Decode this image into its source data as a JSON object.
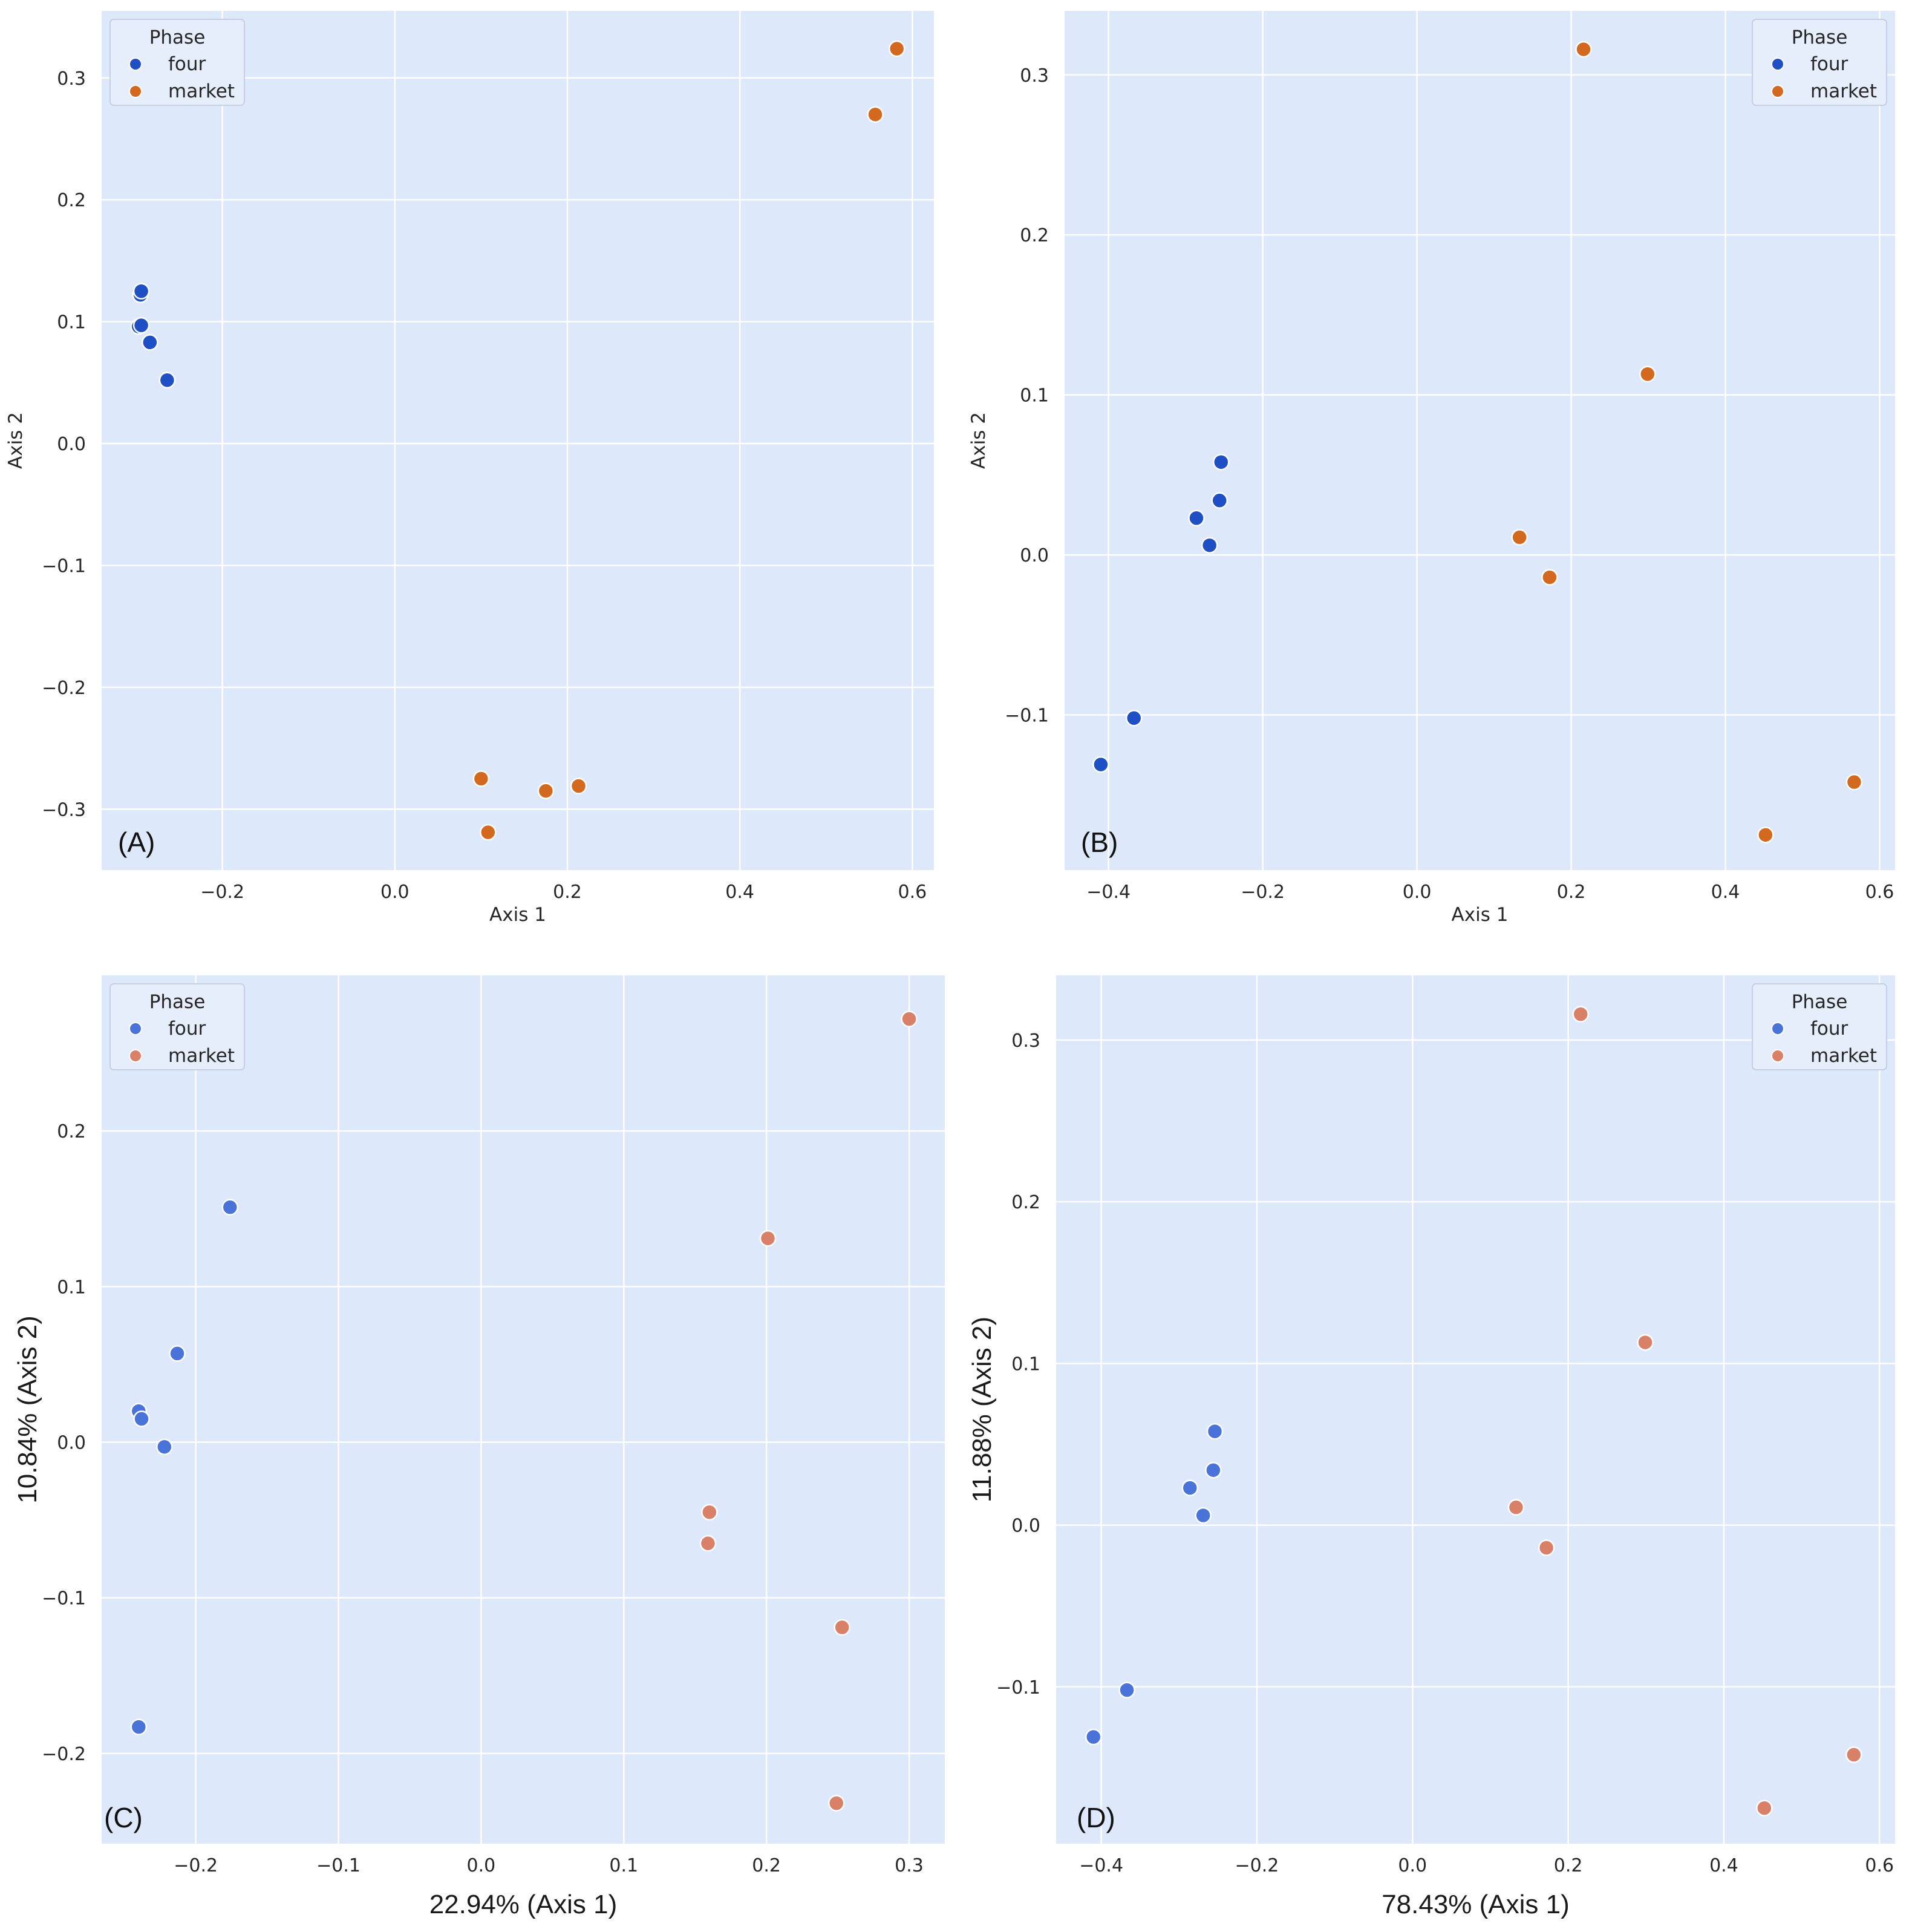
{
  "chart_data": [
    {
      "id": "A",
      "type": "scatter",
      "panel_label": "(A)",
      "xlabel": "Axis 1",
      "ylabel": "Axis 2",
      "xlim": [
        -0.34,
        0.625
      ],
      "ylim": [
        -0.35,
        0.355
      ],
      "xticks": [
        -0.2,
        0.0,
        0.2,
        0.4,
        0.6
      ],
      "xtick_labels": [
        "−0.2",
        "0.0",
        "0.2",
        "0.4",
        "0.6"
      ],
      "yticks": [
        -0.3,
        -0.2,
        -0.1,
        0.0,
        0.1,
        0.2,
        0.3
      ],
      "ytick_labels": [
        "−0.3",
        "−0.2",
        "−0.1",
        "0.0",
        "0.1",
        "0.2",
        "0.3"
      ],
      "legend": {
        "title": "Phase",
        "placement": "top-left"
      },
      "series": [
        {
          "name": "four",
          "color": "#1e4fc4",
          "x": [
            -0.295,
            -0.294,
            -0.297,
            -0.294,
            -0.284,
            -0.264
          ],
          "y": [
            0.122,
            0.125,
            0.096,
            0.097,
            0.083,
            0.052
          ]
        },
        {
          "name": "market",
          "color": "#d2691e",
          "x": [
            0.582,
            0.557,
            0.1,
            0.108,
            0.175,
            0.213
          ],
          "y": [
            0.324,
            0.27,
            -0.275,
            -0.319,
            -0.285,
            -0.281
          ]
        }
      ]
    },
    {
      "id": "B",
      "type": "scatter",
      "panel_label": "(B)",
      "xlabel": "Axis 1",
      "ylabel": "Axis 2",
      "xlim": [
        -0.457,
        0.62
      ],
      "ylim": [
        -0.197,
        0.34
      ],
      "xticks": [
        -0.4,
        -0.2,
        0.0,
        0.2,
        0.4,
        0.6
      ],
      "xtick_labels": [
        "−0.4",
        "−0.2",
        "0.0",
        "0.2",
        "0.4",
        "0.6"
      ],
      "yticks": [
        -0.1,
        0.0,
        0.1,
        0.2,
        0.3
      ],
      "ytick_labels": [
        "−0.1",
        "0.0",
        "0.1",
        "0.2",
        "0.3"
      ],
      "legend": {
        "title": "Phase",
        "placement": "top-right"
      },
      "series": [
        {
          "name": "four",
          "color": "#1e4fc4",
          "x": [
            -0.254,
            -0.256,
            -0.286,
            -0.269,
            -0.367,
            -0.41
          ],
          "y": [
            0.058,
            0.034,
            0.023,
            0.006,
            -0.102,
            -0.131
          ]
        },
        {
          "name": "market",
          "color": "#d2691e",
          "x": [
            0.216,
            0.299,
            0.133,
            0.172,
            0.567,
            0.452
          ],
          "y": [
            0.316,
            0.113,
            0.011,
            -0.014,
            -0.142,
            -0.175
          ]
        }
      ]
    },
    {
      "id": "C",
      "type": "scatter",
      "panel_label": "(C)",
      "xlabel": "22.94% (Axis 1)",
      "ylabel": "10.84% (Axis 2)",
      "xlim": [
        -0.266,
        0.325
      ],
      "ylim": [
        -0.258,
        0.3
      ],
      "xticks": [
        -0.2,
        -0.1,
        0.0,
        0.1,
        0.2,
        0.3
      ],
      "xtick_labels": [
        "−0.2",
        "−0.1",
        "0.0",
        "0.1",
        "0.2",
        "0.3"
      ],
      "yticks": [
        -0.2,
        -0.1,
        0.0,
        0.1,
        0.2
      ],
      "ytick_labels": [
        "−0.2",
        "−0.1",
        "0.0",
        "0.1",
        "0.2"
      ],
      "legend": {
        "title": "Phase",
        "placement": "top-left"
      },
      "series": [
        {
          "name": "four",
          "color": "#4a73d9",
          "x": [
            -0.176,
            -0.213,
            -0.24,
            -0.238,
            -0.222,
            -0.24
          ],
          "y": [
            0.151,
            0.057,
            0.02,
            0.015,
            -0.003,
            -0.183
          ]
        },
        {
          "name": "market",
          "color": "#d98068",
          "x": [
            0.3,
            0.201,
            0.16,
            0.159,
            0.253,
            0.249
          ],
          "y": [
            0.272,
            0.131,
            -0.045,
            -0.065,
            -0.119,
            -0.232
          ]
        }
      ]
    },
    {
      "id": "D",
      "type": "scatter",
      "panel_label": "(D)",
      "xlabel": "78.43% (Axis 1)",
      "ylabel": "11.88% (Axis 2)",
      "xlim": [
        -0.458,
        0.62
      ],
      "ylim": [
        -0.197,
        0.34
      ],
      "xticks": [
        -0.4,
        -0.2,
        0.0,
        0.2,
        0.4,
        0.6
      ],
      "xtick_labels": [
        "−0.4",
        "−0.2",
        "0.0",
        "0.2",
        "0.4",
        "0.6"
      ],
      "yticks": [
        -0.1,
        0.0,
        0.1,
        0.2,
        0.3
      ],
      "ytick_labels": [
        "−0.1",
        "0.0",
        "0.1",
        "0.2",
        "0.3"
      ],
      "legend": {
        "title": "Phase",
        "placement": "top-right"
      },
      "series": [
        {
          "name": "four",
          "color": "#4a73d9",
          "x": [
            -0.254,
            -0.256,
            -0.286,
            -0.269,
            -0.367,
            -0.41
          ],
          "y": [
            0.058,
            0.034,
            0.023,
            0.006,
            -0.102,
            -0.131
          ]
        },
        {
          "name": "market",
          "color": "#d98068",
          "x": [
            0.216,
            0.299,
            0.133,
            0.172,
            0.567,
            0.452
          ],
          "y": [
            0.316,
            0.113,
            0.011,
            -0.014,
            -0.142,
            -0.175
          ]
        }
      ]
    }
  ]
}
